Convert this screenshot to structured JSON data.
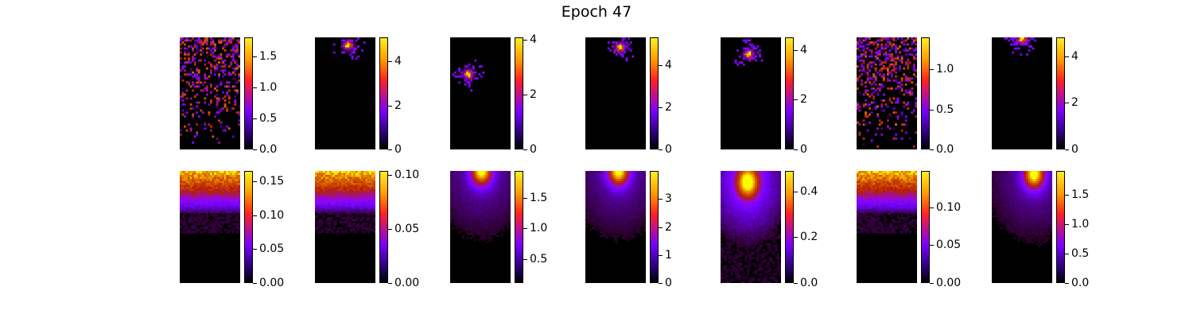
{
  "title": "Epoch 47",
  "colormap": "gnuplot",
  "chart_data": {
    "type": "heatmap",
    "rows": [
      [
        {
          "cbar_ticks": [
            "0.0",
            "0.5",
            "1.0",
            "1.5"
          ],
          "tick_values": [
            0,
            0.5,
            1.0,
            1.5
          ],
          "vmax": 1.8,
          "kind": "sparse",
          "peak": [
            0.55,
            0.12
          ]
        },
        {
          "cbar_ticks": [
            "0",
            "2",
            "4"
          ],
          "tick_values": [
            0,
            2,
            4
          ],
          "vmax": 5.1,
          "kind": "peak",
          "peak": [
            0.55,
            0.07
          ]
        },
        {
          "cbar_ticks": [
            "0",
            "2",
            "4"
          ],
          "tick_values": [
            0,
            2,
            4
          ],
          "vmax": 4.1,
          "kind": "peak",
          "peak": [
            0.3,
            0.33
          ]
        },
        {
          "cbar_ticks": [
            "0",
            "2",
            "4"
          ],
          "tick_values": [
            0,
            2,
            4
          ],
          "vmax": 5.3,
          "kind": "peak",
          "peak": [
            0.58,
            0.09
          ]
        },
        {
          "cbar_ticks": [
            "0",
            "2",
            "4"
          ],
          "tick_values": [
            0,
            2,
            4
          ],
          "vmax": 4.5,
          "kind": "peak",
          "peak": [
            0.47,
            0.15
          ]
        },
        {
          "cbar_ticks": [
            "0.0",
            "0.5",
            "1.0"
          ],
          "tick_values": [
            0,
            0.5,
            1.0
          ],
          "vmax": 1.4,
          "kind": "sparse",
          "peak": [
            0.6,
            0.03
          ]
        },
        {
          "cbar_ticks": [
            "0",
            "2",
            "4"
          ],
          "tick_values": [
            0,
            2,
            4
          ],
          "vmax": 4.8,
          "kind": "peak",
          "peak": [
            0.5,
            0.01
          ]
        }
      ],
      [
        {
          "cbar_ticks": [
            "0.00",
            "0.05",
            "0.10",
            "0.15"
          ],
          "tick_values": [
            0,
            0.05,
            0.1,
            0.15
          ],
          "vmax": 0.165,
          "kind": "band",
          "peak": [
            0.5,
            0.02
          ]
        },
        {
          "cbar_ticks": [
            "0.00",
            "0.05",
            "0.10"
          ],
          "tick_values": [
            0,
            0.05,
            0.1
          ],
          "vmax": 0.104,
          "kind": "band",
          "peak": [
            0.5,
            0.04
          ]
        },
        {
          "cbar_ticks": [
            "0.5",
            "1.0",
            "1.5"
          ],
          "tick_values": [
            0.5,
            1.0,
            1.5
          ],
          "vmax": 1.95,
          "vmin": 0.1,
          "kind": "smooth",
          "peak": [
            0.52,
            0.0
          ]
        },
        {
          "cbar_ticks": [
            "0",
            "1",
            "2",
            "3"
          ],
          "tick_values": [
            0,
            1,
            2,
            3
          ],
          "vmax": 4.0,
          "kind": "smooth",
          "peak": [
            0.55,
            0.0
          ]
        },
        {
          "cbar_ticks": [
            "0.0",
            "0.2",
            "0.4"
          ],
          "tick_values": [
            0,
            0.2,
            0.4
          ],
          "vmax": 0.49,
          "kind": "blob",
          "peak": [
            0.45,
            0.1
          ]
        },
        {
          "cbar_ticks": [
            "0.00",
            "0.05",
            "0.10"
          ],
          "tick_values": [
            0,
            0.05,
            0.1
          ],
          "vmax": 0.148,
          "kind": "band",
          "peak": [
            0.5,
            0.02
          ]
        },
        {
          "cbar_ticks": [
            "0.0",
            "0.5",
            "1.0",
            "1.5"
          ],
          "tick_values": [
            0,
            0.5,
            1.0,
            1.5
          ],
          "vmax": 1.9,
          "kind": "smooth",
          "peak": [
            0.7,
            0.03
          ]
        }
      ]
    ]
  }
}
